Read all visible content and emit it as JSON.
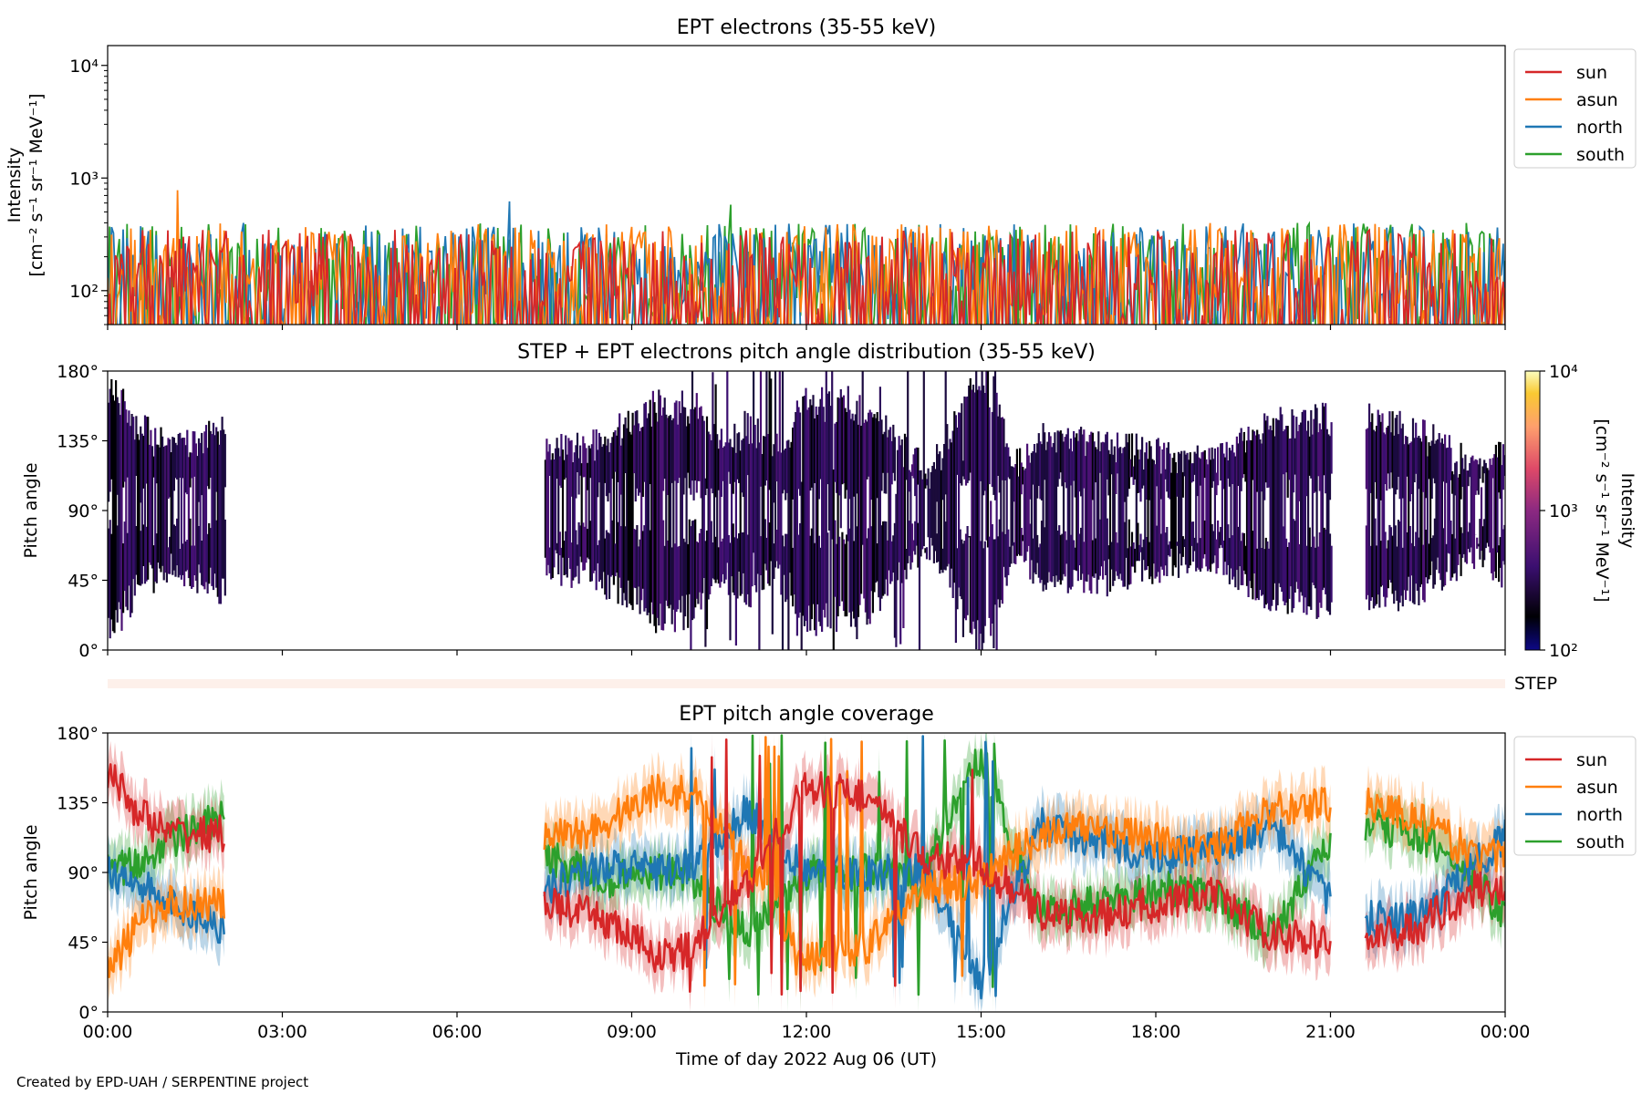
{
  "chart_data": [
    {
      "type": "line",
      "title": "EPT electrons (35-55 keV)",
      "ylabel": "Intensity",
      "ylabel_units": "[cm⁻² s⁻¹ sr⁻¹ MeV⁻¹]",
      "yscale": "log",
      "ylim": [
        50,
        15000
      ],
      "yticks": [
        "10²",
        "10³",
        "10⁴"
      ],
      "xlim_hours": [
        0,
        24
      ],
      "legend_position": "outside-right",
      "colors": {
        "sun": "#d62728",
        "asun": "#ff7f0e",
        "north": "#1f77b4",
        "south": "#2ca02c"
      },
      "series": [
        {
          "name": "sun",
          "typical_range": [
            50,
            350
          ]
        },
        {
          "name": "asun",
          "typical_range": [
            50,
            400
          ],
          "max": 780
        },
        {
          "name": "north",
          "typical_range": [
            50,
            400
          ],
          "max": 620
        },
        {
          "name": "south",
          "typical_range": [
            50,
            400
          ],
          "max": 580
        }
      ]
    },
    {
      "type": "heatmap",
      "title": "STEP + EPT electrons pitch angle distribution (35-55 keV)",
      "ylabel": "Pitch angle",
      "ylim": [
        0,
        180
      ],
      "yticks": [
        "0°",
        "45°",
        "90°",
        "135°",
        "180°"
      ],
      "colorbar": {
        "label": "Intensity",
        "units": "[cm⁻² s⁻¹ sr⁻¹ MeV⁻¹]",
        "scale": "log",
        "range": [
          100,
          10000
        ],
        "ticks": [
          "10²",
          "10³",
          "10⁴"
        ]
      },
      "data_gaps_hours": [
        [
          2.0,
          7.5
        ],
        [
          21.0,
          21.6
        ]
      ],
      "typical_value": 200
    },
    {
      "type": "bar",
      "label": "STEP"
    },
    {
      "type": "area",
      "title": "EPT pitch angle coverage",
      "ylabel": "Pitch angle",
      "xlabel": "Time of day 2022 Aug 06 (UT)",
      "ylim": [
        0,
        180
      ],
      "yticks": [
        "0°",
        "45°",
        "90°",
        "135°",
        "180°"
      ],
      "x": [
        "00:00",
        "03:00",
        "06:00",
        "09:00",
        "12:00",
        "15:00",
        "18:00",
        "21:00",
        "00:00"
      ],
      "legend_position": "outside-right",
      "data_gaps_hours": [
        [
          2.0,
          7.5
        ],
        [
          21.0,
          21.6
        ]
      ],
      "series": [
        {
          "name": "sun",
          "hours": [
            0,
            0.5,
            1,
            2,
            7.5,
            8.5,
            9.5,
            10,
            11,
            12,
            13,
            14,
            15,
            16,
            17,
            18,
            19,
            20,
            21,
            21.6,
            22.5,
            23.5,
            24
          ],
          "pitch": [
            155,
            130,
            115,
            115,
            70,
            60,
            35,
            40,
            85,
            145,
            140,
            100,
            95,
            65,
            60,
            70,
            75,
            50,
            45,
            45,
            55,
            80,
            80
          ]
        },
        {
          "name": "asun",
          "hours": [
            0,
            0.5,
            1,
            2,
            7.5,
            8.5,
            9.5,
            10,
            11,
            12,
            13,
            14,
            15,
            16,
            17,
            18,
            19,
            20,
            21,
            21.6,
            22.5,
            23.5,
            24
          ],
          "pitch": [
            25,
            55,
            70,
            70,
            110,
            120,
            145,
            140,
            95,
            35,
            40,
            80,
            85,
            115,
            120,
            110,
            105,
            130,
            135,
            135,
            125,
            100,
            100
          ]
        },
        {
          "name": "north",
          "hours": [
            0,
            0.5,
            1,
            2,
            7.5,
            8.5,
            9.5,
            10,
            11,
            12,
            13,
            14,
            15,
            16,
            17,
            18,
            19,
            20,
            21,
            21.6,
            22.5,
            23.5,
            24
          ],
          "pitch": [
            90,
            85,
            70,
            55,
            80,
            95,
            90,
            95,
            130,
            90,
            90,
            90,
            20,
            120,
            110,
            100,
            105,
            120,
            70,
            60,
            60,
            95,
            115
          ]
        },
        {
          "name": "south",
          "hours": [
            0,
            0.5,
            1,
            2,
            7.5,
            8.5,
            9.5,
            10,
            11,
            12,
            13,
            14,
            15,
            16,
            17,
            18,
            19,
            20,
            21,
            21.6,
            22.5,
            23.5,
            24
          ],
          "pitch": [
            90,
            95,
            110,
            125,
            100,
            85,
            90,
            85,
            50,
            90,
            90,
            90,
            165,
            65,
            70,
            80,
            75,
            50,
            110,
            120,
            115,
            85,
            60
          ]
        }
      ]
    }
  ],
  "panels": {
    "top_title": "EPT electrons (35-55 keV)",
    "top_ylabel": "Intensity",
    "top_yunits": "[cm⁻² s⁻¹ sr⁻¹ MeV⁻¹]",
    "mid_title": "STEP + EPT electrons pitch angle distribution (35-55 keV)",
    "mid_ylabel": "Pitch angle",
    "cbar_label": "Intensity",
    "cbar_units": "[cm⁻² s⁻¹ sr⁻¹ MeV⁻¹]",
    "step_label": "STEP",
    "bot_title": "EPT pitch angle coverage",
    "bot_ylabel": "Pitch angle",
    "xlabel": "Time of day 2022 Aug 06 (UT)"
  },
  "legend": [
    "sun",
    "asun",
    "north",
    "south"
  ],
  "x_ticks": [
    "00:00",
    "03:00",
    "06:00",
    "09:00",
    "12:00",
    "15:00",
    "18:00",
    "21:00",
    "00:00"
  ],
  "pitch_ticks": [
    "0°",
    "45°",
    "90°",
    "135°",
    "180°"
  ],
  "credit": "Created by EPD-UAH / SERPENTINE project"
}
